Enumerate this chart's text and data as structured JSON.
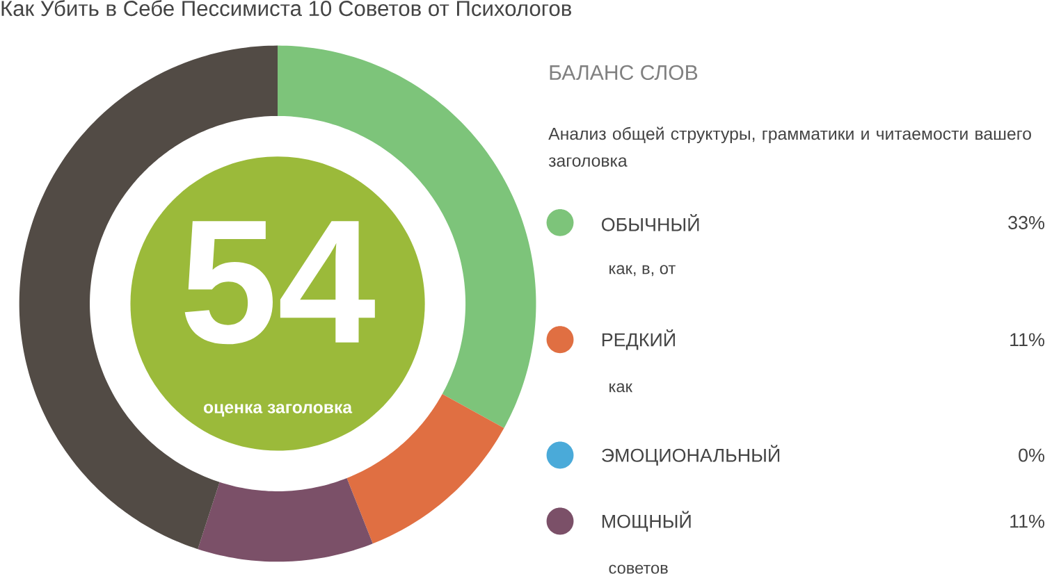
{
  "chart_data": {
    "type": "donut",
    "title": "Как Убить в Себе Пессимиста 10 Советов от Психологов",
    "legend_title": "БАЛАНС СЛОВ",
    "categories": [
      "ОБЫЧНЫЙ",
      "РЕДКИЙ",
      "ЭМОЦИОНАЛЬНЫЙ",
      "МОЩНЫЙ",
      null
    ],
    "values": [
      33,
      11,
      0,
      11,
      45
    ],
    "colors": [
      "#7dc47a",
      "#e06f42",
      "#4aaad9",
      "#7b5068",
      "#524b45"
    ],
    "value_labels": [
      "33%",
      "11%",
      "0%",
      "11%",
      null
    ],
    "legend": "right",
    "annotations": [
      "54",
      "оценка заголовка",
      "Анализ общей структуры, грамматики и читаемости вашего заголовка",
      "как, в, от",
      "как",
      "советов"
    ]
  }
}
